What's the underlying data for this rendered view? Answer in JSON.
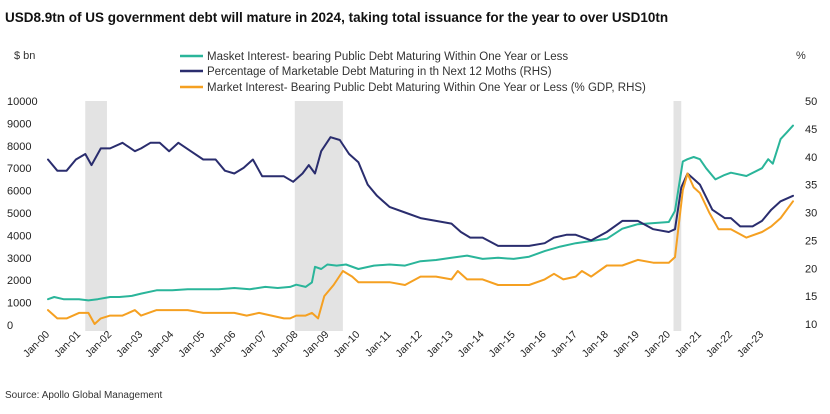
{
  "chart_data": {
    "type": "line",
    "title": "USD8.9tn of US government debt will mature in 2024, taking total issuance for the year to over USD10tn",
    "y_left_label": "$ bn",
    "y_right_label": "%",
    "source": "Source: Apollo Global Management",
    "y_left": {
      "min": 0,
      "max": 10000,
      "ticks": [
        0,
        1000,
        2000,
        3000,
        4000,
        5000,
        6000,
        7000,
        8000,
        9000,
        10000
      ]
    },
    "y_right": {
      "min": 10,
      "max": 50,
      "ticks": [
        10,
        15,
        20,
        25,
        30,
        35,
        40,
        45,
        50
      ]
    },
    "x_range": [
      2000.0,
      2024.0
    ],
    "x_ticks": [
      {
        "x": 2000,
        "label": "Jan-00"
      },
      {
        "x": 2001,
        "label": "Jan-01"
      },
      {
        "x": 2002,
        "label": "Jan-02"
      },
      {
        "x": 2003,
        "label": "Jan-03"
      },
      {
        "x": 2004,
        "label": "Jan-04"
      },
      {
        "x": 2005,
        "label": "Jan-05"
      },
      {
        "x": 2006,
        "label": "Jan-06"
      },
      {
        "x": 2007,
        "label": "Jan-07"
      },
      {
        "x": 2008,
        "label": "Jan-08"
      },
      {
        "x": 2009,
        "label": "Jan-09"
      },
      {
        "x": 2010,
        "label": "Jan-10"
      },
      {
        "x": 2011,
        "label": "Jan-11"
      },
      {
        "x": 2012,
        "label": "Jan-12"
      },
      {
        "x": 2013,
        "label": "Jan-13"
      },
      {
        "x": 2014,
        "label": "Jan-14"
      },
      {
        "x": 2015,
        "label": "Jan-15"
      },
      {
        "x": 2016,
        "label": "Jan-16"
      },
      {
        "x": 2017,
        "label": "Jan-17"
      },
      {
        "x": 2018,
        "label": "Jan-18"
      },
      {
        "x": 2019,
        "label": "Jan-19"
      },
      {
        "x": 2020,
        "label": "Jan-20"
      },
      {
        "x": 2021,
        "label": "Jan-21"
      },
      {
        "x": 2022,
        "label": "Jan-22"
      },
      {
        "x": 2023,
        "label": "Jan-23"
      }
    ],
    "recessions": [
      [
        2001.2,
        2001.9
      ],
      [
        2007.95,
        2009.5
      ],
      [
        2020.15,
        2020.4
      ]
    ],
    "legend_position": "top-center",
    "series": [
      {
        "name": "Masket Interest- bearing Public Debt Maturing Within One Year or Less",
        "axis": "left",
        "color": "#2ab59a",
        "x": [
          2000.0,
          2000.2,
          2000.5,
          2001.0,
          2001.3,
          2001.6,
          2002.0,
          2002.3,
          2002.7,
          2003.0,
          2003.5,
          2004.0,
          2004.5,
          2005.0,
          2005.5,
          2006.0,
          2006.5,
          2007.0,
          2007.4,
          2007.8,
          2008.0,
          2008.3,
          2008.5,
          2008.6,
          2008.8,
          2009.0,
          2009.3,
          2009.6,
          2010.0,
          2010.5,
          2011.0,
          2011.5,
          2012.0,
          2012.5,
          2013.0,
          2013.5,
          2014.0,
          2014.5,
          2015.0,
          2015.5,
          2016.0,
          2016.5,
          2017.0,
          2017.5,
          2018.0,
          2018.5,
          2019.0,
          2019.5,
          2020.0,
          2020.2,
          2020.45,
          2020.6,
          2020.8,
          2021.0,
          2021.2,
          2021.5,
          2021.8,
          2022.0,
          2022.5,
          2023.0,
          2023.2,
          2023.35,
          2023.6,
          2023.8,
          2024.0
        ],
        "y": [
          1150,
          1250,
          1150,
          1150,
          1100,
          1150,
          1250,
          1250,
          1300,
          1400,
          1550,
          1550,
          1600,
          1600,
          1600,
          1650,
          1600,
          1700,
          1650,
          1700,
          1800,
          1700,
          1900,
          2600,
          2500,
          2700,
          2650,
          2700,
          2500,
          2650,
          2700,
          2650,
          2850,
          2900,
          3000,
          3100,
          2950,
          3000,
          2950,
          3050,
          3300,
          3500,
          3650,
          3750,
          3850,
          4300,
          4500,
          4550,
          4600,
          5100,
          7300,
          7400,
          7500,
          7400,
          7000,
          6500,
          6700,
          6800,
          6650,
          7000,
          7400,
          7200,
          8300,
          8600,
          8900
        ]
      },
      {
        "name": "Percentage of  Marketable Debt Maturing in th Next 12 Moths (RHS)",
        "axis": "right",
        "color": "#2a2d6e",
        "x": [
          2000.0,
          2000.3,
          2000.6,
          2000.9,
          2001.2,
          2001.4,
          2001.7,
          2002.0,
          2002.4,
          2002.8,
          2003.0,
          2003.3,
          2003.6,
          2003.9,
          2004.2,
          2004.6,
          2005.0,
          2005.4,
          2005.7,
          2006.0,
          2006.3,
          2006.6,
          2006.9,
          2007.2,
          2007.6,
          2007.9,
          2008.2,
          2008.4,
          2008.6,
          2008.8,
          2009.1,
          2009.4,
          2009.7,
          2010.0,
          2010.3,
          2010.6,
          2011.0,
          2011.5,
          2012.0,
          2012.5,
          2013.0,
          2013.3,
          2013.6,
          2014.0,
          2014.5,
          2015.0,
          2015.5,
          2016.0,
          2016.3,
          2016.7,
          2017.0,
          2017.5,
          2018.0,
          2018.5,
          2019.0,
          2019.5,
          2020.0,
          2020.2,
          2020.4,
          2020.6,
          2020.8,
          2021.0,
          2021.4,
          2021.8,
          2022.0,
          2022.3,
          2022.7,
          2023.0,
          2023.3,
          2023.6,
          2024.0
        ],
        "y": [
          39.5,
          37.5,
          37.5,
          39.5,
          40.5,
          38.5,
          41.5,
          41.5,
          42.5,
          41.0,
          41.5,
          42.5,
          42.5,
          41.0,
          42.5,
          41.0,
          39.5,
          39.5,
          37.5,
          37.0,
          38.0,
          39.5,
          36.5,
          36.5,
          36.5,
          35.5,
          37.0,
          38.5,
          37.0,
          41.0,
          43.5,
          43.0,
          40.5,
          39.0,
          35.0,
          33.0,
          31.0,
          30.0,
          29.0,
          28.5,
          28.0,
          26.5,
          25.5,
          25.5,
          24.0,
          24.0,
          24.0,
          24.5,
          25.5,
          26.0,
          26.0,
          25.0,
          26.5,
          28.5,
          28.5,
          27.0,
          26.5,
          27.0,
          34.5,
          37.0,
          36.0,
          35.0,
          30.5,
          29.0,
          29.0,
          27.5,
          27.5,
          28.5,
          30.5,
          32.0,
          33.0
        ]
      },
      {
        "name": "Market Interest- Bearing Public Debt Maturing Within One Year or Less (% GDP, RHS)",
        "axis": "right",
        "color": "#f5a021",
        "x": [
          2000.0,
          2000.3,
          2000.6,
          2001.0,
          2001.3,
          2001.5,
          2001.7,
          2002.0,
          2002.4,
          2002.8,
          2003.0,
          2003.5,
          2004.0,
          2004.5,
          2005.0,
          2005.5,
          2006.0,
          2006.4,
          2006.8,
          2007.2,
          2007.6,
          2007.8,
          2008.0,
          2008.3,
          2008.5,
          2008.7,
          2008.9,
          2009.2,
          2009.5,
          2009.8,
          2010.0,
          2010.5,
          2011.0,
          2011.5,
          2012.0,
          2012.5,
          2013.0,
          2013.2,
          2013.5,
          2014.0,
          2014.5,
          2015.0,
          2015.5,
          2016.0,
          2016.3,
          2016.6,
          2017.0,
          2017.2,
          2017.5,
          2018.0,
          2018.5,
          2019.0,
          2019.5,
          2020.0,
          2020.2,
          2020.45,
          2020.6,
          2020.8,
          2021.0,
          2021.3,
          2021.6,
          2022.0,
          2022.5,
          2023.0,
          2023.3,
          2023.6,
          2024.0
        ],
        "y": [
          12.5,
          11.0,
          11.0,
          12.0,
          12.0,
          10.0,
          11.0,
          11.5,
          11.5,
          12.5,
          11.5,
          12.5,
          12.5,
          12.5,
          12.0,
          12.0,
          12.0,
          11.5,
          12.0,
          11.5,
          11.0,
          11.0,
          11.5,
          11.5,
          12.0,
          11.0,
          15.0,
          17.0,
          19.5,
          18.5,
          17.5,
          17.5,
          17.5,
          17.0,
          18.5,
          18.5,
          18.0,
          19.5,
          18.0,
          18.0,
          17.0,
          17.0,
          17.0,
          18.0,
          19.0,
          18.0,
          18.5,
          19.5,
          18.5,
          20.5,
          20.5,
          21.5,
          21.0,
          21.0,
          22.0,
          34.0,
          37.0,
          34.5,
          33.5,
          30.0,
          27.0,
          27.0,
          25.5,
          26.5,
          27.5,
          29.0,
          32.0
        ]
      }
    ]
  }
}
